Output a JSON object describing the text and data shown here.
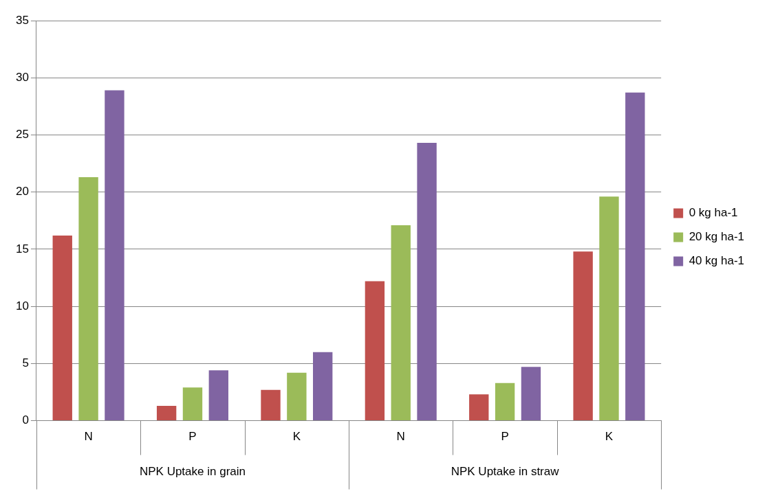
{
  "chart_data": {
    "type": "bar",
    "categories": [
      "N",
      "P",
      "K",
      "N",
      "P",
      "K"
    ],
    "series": [
      {
        "name": "0 kg ha-1",
        "color": "#c0504d",
        "values": [
          16.2,
          1.3,
          2.7,
          12.2,
          2.3,
          14.8
        ]
      },
      {
        "name": "20 kg ha-1",
        "color": "#9bbb59",
        "values": [
          21.3,
          2.9,
          4.2,
          17.1,
          3.3,
          19.6
        ]
      },
      {
        "name": "40 kg ha-1",
        "color": "#8064a2",
        "values": [
          28.9,
          4.4,
          6.0,
          24.3,
          4.7,
          28.7
        ]
      }
    ],
    "annotations": [
      "NPK Uptake in grain",
      "NPK Uptake in straw"
    ],
    "ylim": [
      0,
      35
    ],
    "yticks": [
      0,
      5,
      10,
      15,
      20,
      25,
      30,
      35
    ],
    "grid": "y",
    "legend": "right"
  }
}
